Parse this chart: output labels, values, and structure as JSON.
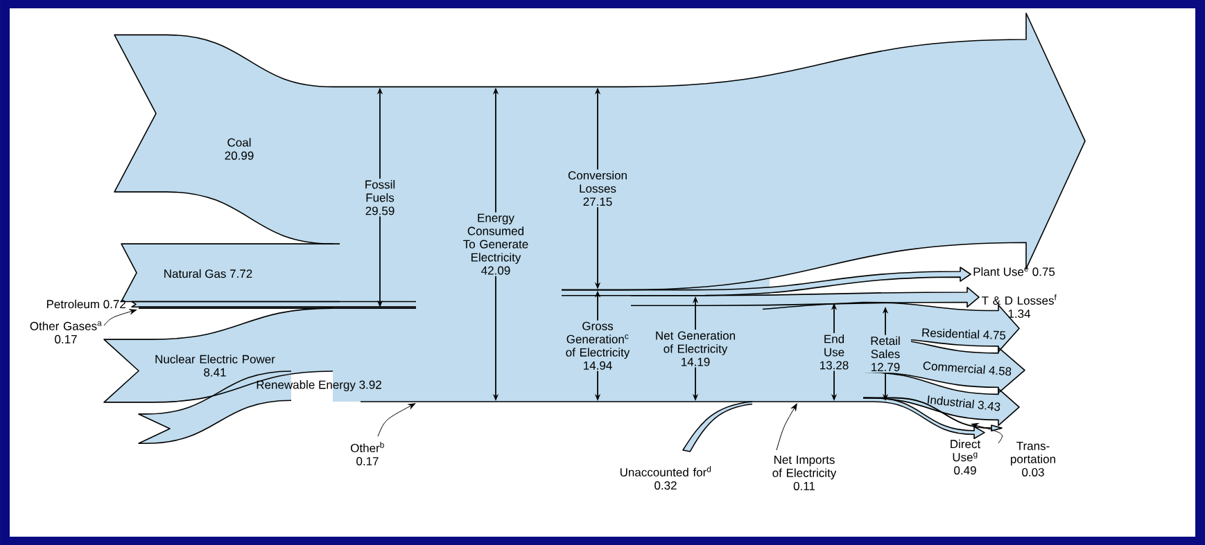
{
  "chart_data": {
    "type": "other",
    "color": "#c0dcee",
    "data_labels": true,
    "categories": [
      "Coal",
      "Natural Gas",
      "Petroleum",
      "Other Gases$^{a}$",
      "Nuclear Electric Power",
      "Renewable Energy",
      "Other$^{b}$",
      "Fossil Fuels",
      "Energy Consumed To Generate Electricity",
      "Conversion Losses",
      "Gross Generation$^{c}$ of Electricity",
      "Net Generation of Electricity",
      "Unaccounted for$^{d}$",
      "Net Imports of Electricity",
      "End Use",
      "Retail Sales",
      "Plant Use$^{e}$",
      "T & D Losses$^{f}$",
      "Residential",
      "Commercial",
      "Industrial",
      "Trans-portation",
      "Direct Use$^{g}$"
    ],
    "values": [
      20.99,
      7.72,
      0.72,
      0.17,
      8.41,
      3.92,
      0.17,
      29.59,
      42.09,
      27.15,
      14.94,
      14.19,
      0.32,
      0.11,
      13.28,
      12.79,
      0.75,
      1.34,
      4.75,
      4.58,
      3.43,
      0.03,
      0.49
    ]
  }
}
